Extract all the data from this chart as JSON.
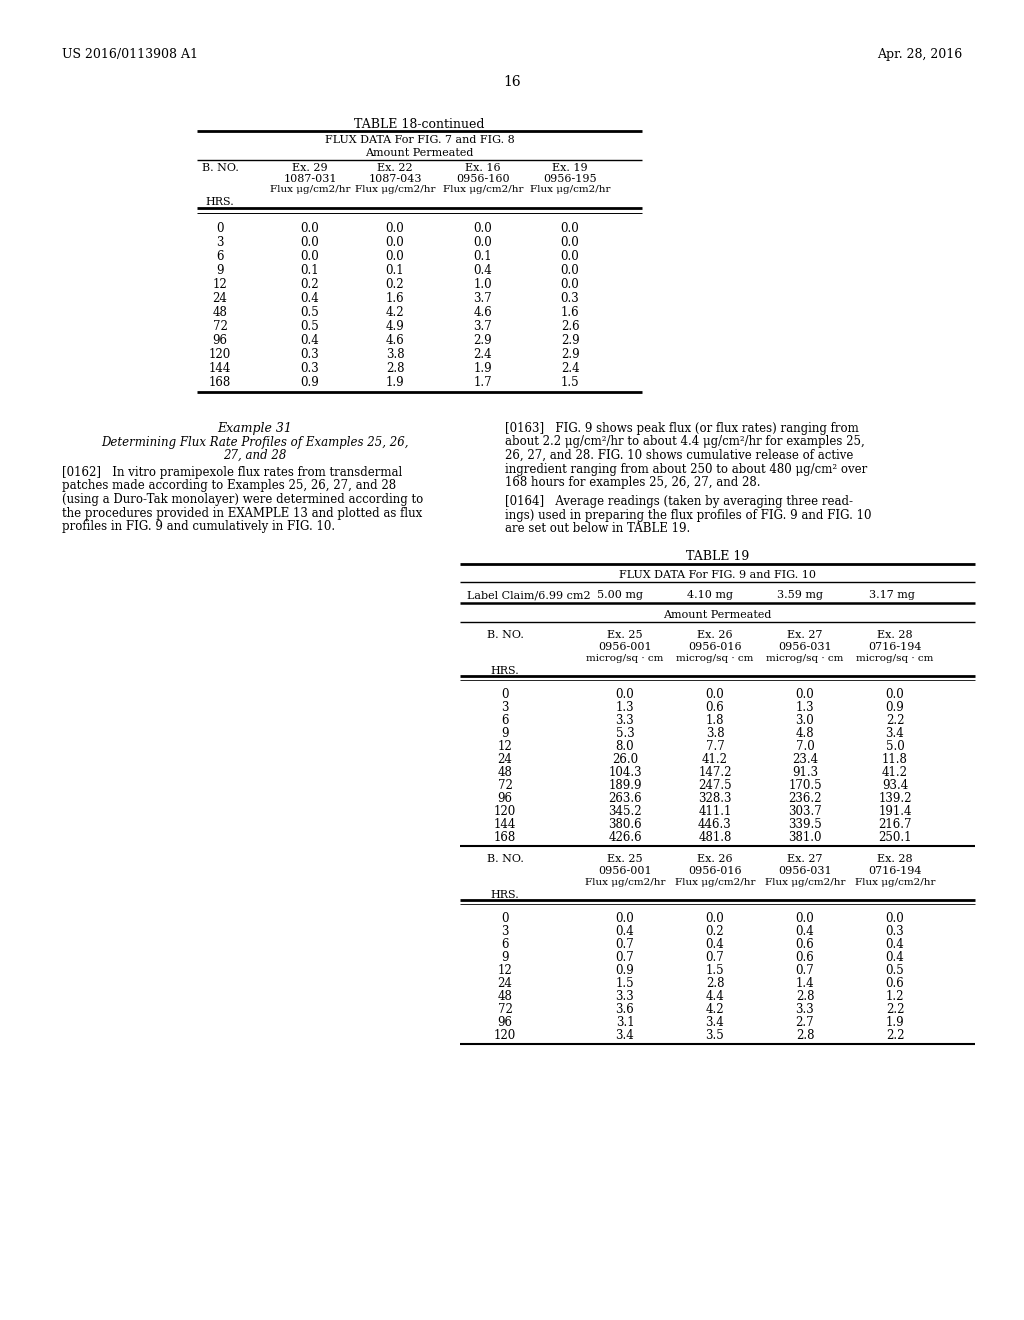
{
  "header_left": "US 2016/0113908 A1",
  "header_right": "Apr. 28, 2016",
  "page_number": "16",
  "table18_title": "TABLE 18-continued",
  "table18_subtitle1": "FLUX DATA For FIG. 7 and FIG. 8",
  "table18_subtitle2": "Amount Permeated",
  "table18_data": [
    [
      "0",
      "0.0",
      "0.0",
      "0.0",
      "0.0"
    ],
    [
      "3",
      "0.0",
      "0.0",
      "0.0",
      "0.0"
    ],
    [
      "6",
      "0.0",
      "0.0",
      "0.1",
      "0.0"
    ],
    [
      "9",
      "0.1",
      "0.1",
      "0.4",
      "0.0"
    ],
    [
      "12",
      "0.2",
      "0.2",
      "1.0",
      "0.0"
    ],
    [
      "24",
      "0.4",
      "1.6",
      "3.7",
      "0.3"
    ],
    [
      "48",
      "0.5",
      "4.2",
      "4.6",
      "1.6"
    ],
    [
      "72",
      "0.5",
      "4.9",
      "3.7",
      "2.6"
    ],
    [
      "96",
      "0.4",
      "4.6",
      "2.9",
      "2.9"
    ],
    [
      "120",
      "0.3",
      "3.8",
      "2.4",
      "2.9"
    ],
    [
      "144",
      "0.3",
      "2.8",
      "1.9",
      "2.4"
    ],
    [
      "168",
      "0.9",
      "1.9",
      "1.7",
      "1.5"
    ]
  ],
  "table19_data_cumul": [
    [
      "0",
      "0.0",
      "0.0",
      "0.0",
      "0.0"
    ],
    [
      "3",
      "1.3",
      "0.6",
      "1.3",
      "0.9"
    ],
    [
      "6",
      "3.3",
      "1.8",
      "3.0",
      "2.2"
    ],
    [
      "9",
      "5.3",
      "3.8",
      "4.8",
      "3.4"
    ],
    [
      "12",
      "8.0",
      "7.7",
      "7.0",
      "5.0"
    ],
    [
      "24",
      "26.0",
      "41.2",
      "23.4",
      "11.8"
    ],
    [
      "48",
      "104.3",
      "147.2",
      "91.3",
      "41.2"
    ],
    [
      "72",
      "189.9",
      "247.5",
      "170.5",
      "93.4"
    ],
    [
      "96",
      "263.6",
      "328.3",
      "236.2",
      "139.2"
    ],
    [
      "120",
      "345.2",
      "411.1",
      "303.7",
      "191.4"
    ],
    [
      "144",
      "380.6",
      "446.3",
      "339.5",
      "216.7"
    ],
    [
      "168",
      "426.6",
      "481.8",
      "381.0",
      "250.1"
    ]
  ],
  "table19_data_flux": [
    [
      "0",
      "0.0",
      "0.0",
      "0.0",
      "0.0"
    ],
    [
      "3",
      "0.4",
      "0.2",
      "0.4",
      "0.3"
    ],
    [
      "6",
      "0.7",
      "0.4",
      "0.6",
      "0.4"
    ],
    [
      "9",
      "0.7",
      "0.7",
      "0.6",
      "0.4"
    ],
    [
      "12",
      "0.9",
      "1.5",
      "0.7",
      "0.5"
    ],
    [
      "24",
      "1.5",
      "2.8",
      "1.4",
      "0.6"
    ],
    [
      "48",
      "3.3",
      "4.4",
      "2.8",
      "1.2"
    ],
    [
      "72",
      "3.6",
      "4.2",
      "3.3",
      "2.2"
    ],
    [
      "96",
      "3.1",
      "3.4",
      "2.7",
      "1.9"
    ],
    [
      "120",
      "3.4",
      "3.5",
      "2.8",
      "2.2"
    ]
  ]
}
